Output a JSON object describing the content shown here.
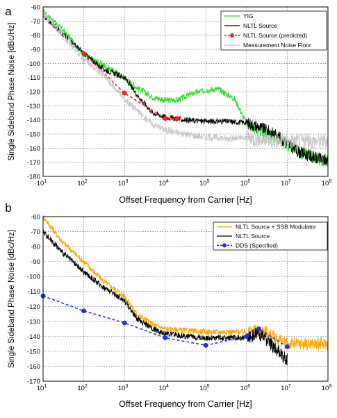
{
  "chart_data": [
    {
      "panel_label": "a",
      "type": "line",
      "xscale": "log",
      "xlim": [
        10,
        100000000
      ],
      "ylim": [
        -180,
        -60
      ],
      "yticks": [
        -60,
        -70,
        -80,
        -90,
        -100,
        -110,
        -120,
        -130,
        -140,
        -150,
        -160,
        -170,
        -180
      ],
      "xlabel": "Offset Frequency from Carrier [Hz]",
      "ylabel": "Single Sideband Phase Noise [dBc/Hz]",
      "grid": true,
      "legend_position": "top-right",
      "series": [
        {
          "name": "YIG",
          "color": "#22dd22",
          "style": "solid",
          "x": [
            10,
            30,
            100,
            300,
            1000,
            2000,
            5000,
            10000,
            20000,
            50000,
            100000,
            200000,
            500000,
            1000000,
            2000000,
            5000000,
            10000000,
            20000000,
            50000000,
            100000000
          ],
          "y": [
            -63,
            -76,
            -94,
            -101,
            -110,
            -117,
            -124,
            -126,
            -126,
            -121,
            -119,
            -118,
            -125,
            -142,
            -148,
            -152,
            -157,
            -163,
            -167,
            -169
          ]
        },
        {
          "name": "NLTL Source",
          "color": "#000000",
          "style": "solid",
          "x": [
            10,
            30,
            100,
            300,
            1000,
            2000,
            3000,
            5000,
            10000,
            30000,
            100000,
            300000,
            1000000,
            2000000,
            5000000,
            10000000,
            20000000,
            50000000,
            100000000
          ],
          "y": [
            -66,
            -79,
            -93,
            -104,
            -110,
            -122,
            -128,
            -135,
            -138,
            -140,
            -141,
            -141,
            -142,
            -145,
            -150,
            -157,
            -163,
            -167,
            -169
          ]
        },
        {
          "name": "NLTL Source (predicted)",
          "color": "#ff1a1a",
          "style": "dashed",
          "markers": true,
          "x": [
            100,
            1000,
            10000,
            20000
          ],
          "y": [
            -93,
            -121,
            -139,
            -139
          ]
        },
        {
          "name": "Measurement Noise Floor",
          "color": "#c8c8c8",
          "style": "solid",
          "x": [
            10,
            30,
            100,
            300,
            1000,
            3000,
            5000,
            10000,
            30000,
            100000,
            300000,
            1000000,
            3000000,
            10000000,
            30000000,
            100000000
          ],
          "y": [
            -64,
            -80,
            -97,
            -108,
            -125,
            -138,
            -143,
            -147,
            -150,
            -152,
            -153,
            -153,
            -154,
            -155,
            -155,
            -155
          ]
        }
      ]
    },
    {
      "panel_label": "b",
      "type": "line",
      "xscale": "log",
      "xlim": [
        10,
        100000000
      ],
      "ylim": [
        -170,
        -60
      ],
      "yticks": [
        -60,
        -70,
        -80,
        -90,
        -100,
        -110,
        -120,
        -130,
        -140,
        -150,
        -160,
        -170
      ],
      "xlabel": "Offset Frequency from Carrier [Hz]",
      "ylabel": "Single Sideband Phase Noise [dBc/Hz]",
      "grid": true,
      "legend_position": "top-right",
      "series": [
        {
          "name": "NLTL Source + SSB Modulator",
          "color": "#ffa500",
          "style": "solid",
          "x": [
            10,
            30,
            100,
            300,
            1000,
            2000,
            5000,
            10000,
            30000,
            100000,
            300000,
            1000000,
            2000000,
            3000000,
            5000000,
            10000000,
            20000000,
            50000000,
            100000000
          ],
          "y": [
            -60,
            -77,
            -90,
            -103,
            -113,
            -125,
            -132,
            -135,
            -136,
            -137,
            -137,
            -137,
            -136,
            -137,
            -141,
            -145,
            -145,
            -145,
            -145
          ]
        },
        {
          "name": "NLTL Source",
          "color": "#000000",
          "style": "solid",
          "x": [
            10,
            30,
            100,
            300,
            1000,
            2000,
            5000,
            10000,
            30000,
            100000,
            300000,
            1000000,
            2000000,
            3000000,
            5000000,
            10000000
          ],
          "y": [
            -70,
            -84,
            -97,
            -107,
            -116,
            -128,
            -135,
            -138,
            -140,
            -141,
            -141,
            -141,
            -138,
            -142,
            -148,
            -156
          ]
        },
        {
          "name": "DDS (Specified)",
          "color": "#1f2ee8",
          "style": "dashed",
          "markers": true,
          "x": [
            10,
            100,
            1000,
            10000,
            100000,
            1000000,
            2000000,
            10000000
          ],
          "y": [
            -113,
            -123,
            -131,
            -141,
            -146,
            -140,
            -135,
            -147
          ]
        }
      ]
    }
  ]
}
